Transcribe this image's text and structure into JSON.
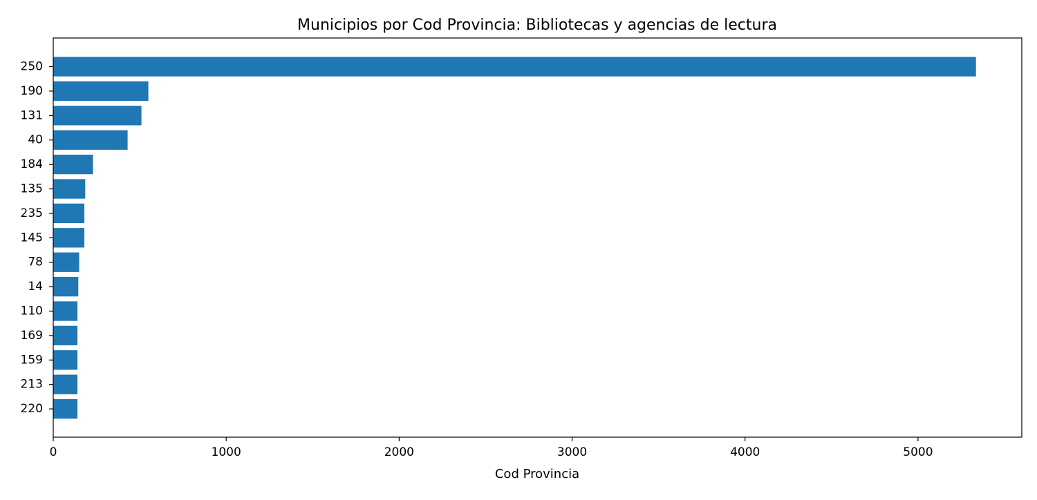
{
  "chart_data": {
    "type": "bar",
    "orientation": "horizontal",
    "title": "Municipios por Cod Provincia: Bibliotecas y agencias de lectura",
    "xlabel": "Cod Provincia",
    "ylabel": "",
    "categories": [
      "250",
      "190",
      "131",
      "40",
      "184",
      "135",
      "235",
      "145",
      "78",
      "14",
      "110",
      "169",
      "159",
      "213",
      "220"
    ],
    "values": [
      5335,
      550,
      510,
      430,
      230,
      185,
      180,
      180,
      150,
      145,
      140,
      140,
      140,
      140,
      140
    ],
    "xlim": [
      0,
      5600
    ],
    "x_ticks": [
      0,
      1000,
      2000,
      3000,
      4000,
      5000
    ],
    "grid": false,
    "legend": "none",
    "bar_color": "#1f77b4"
  }
}
